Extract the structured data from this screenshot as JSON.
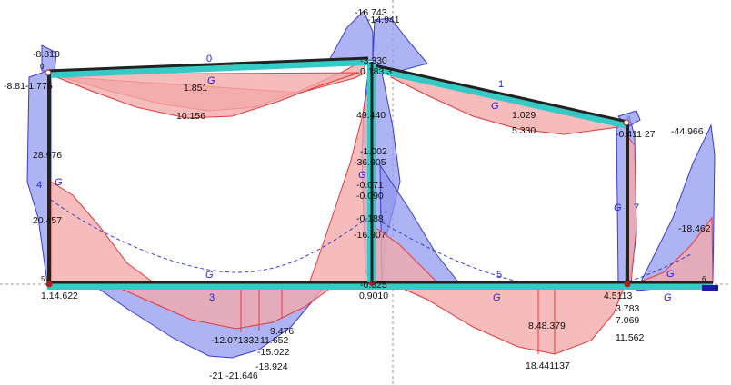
{
  "colors": {
    "blue_fill": "#8f96ee",
    "blue_line": "#3a3ad8",
    "red_fill": "#f3a9a9",
    "red_line": "#e23a3a",
    "member": "#222222",
    "highlight": "#36c9c6",
    "tag_text": "#2222dd",
    "value_text": "#111111"
  },
  "member_labels": {
    "top_beam_left": "0",
    "top_beam_right": "1",
    "bottom_beam_left": "3",
    "bottom_beam_right": "5",
    "left_column": "4",
    "right_column": "7",
    "node_top_left": "0",
    "node_bottom_left": "5",
    "node_bottom_right": "6",
    "g": "G"
  },
  "values": {
    "v_m8810": "-8.810",
    "v_m881_m1776": "-8.81-1.776",
    "v_1851": "1.851",
    "v_10156": "10.156",
    "v_m16743": "-16.743",
    "v_m14941": "-14.941",
    "v_m3330": "-3.330",
    "v_01833": "0.183.3",
    "v_1029": "1.029",
    "v_5330": "5.330",
    "v_m0411_27": "-0.411 27",
    "v_m44966": "-44.966",
    "v_28976": "28.976",
    "v_20457": "20.457",
    "v_49440": "49.440",
    "v_m1002": "-1.002",
    "v_m36905": "-36.905",
    "v_m0071": "-0.071",
    "v_m0090": "-0.090",
    "v_m0188": "-0.188",
    "v_m16907": "-16.907",
    "v_m18462": "-18.462",
    "v_14622": "1.14.622",
    "v_m0325": "-0.325",
    "v_09010": "0.9010",
    "v_4511": "4.5113",
    "v_3783": "3.783",
    "v_7069": "7.069",
    "v_11562": "11.562",
    "v_9476": "9.476",
    "v_m12071332": "-12.071332",
    "v_11652": "11.652",
    "v_m15022": "-15.022",
    "v_m18924": "-18.924",
    "v_m21_m21646": "-21 -21.646",
    "v_8_18379": "8.48.379",
    "v_18441137": "18.441137"
  }
}
